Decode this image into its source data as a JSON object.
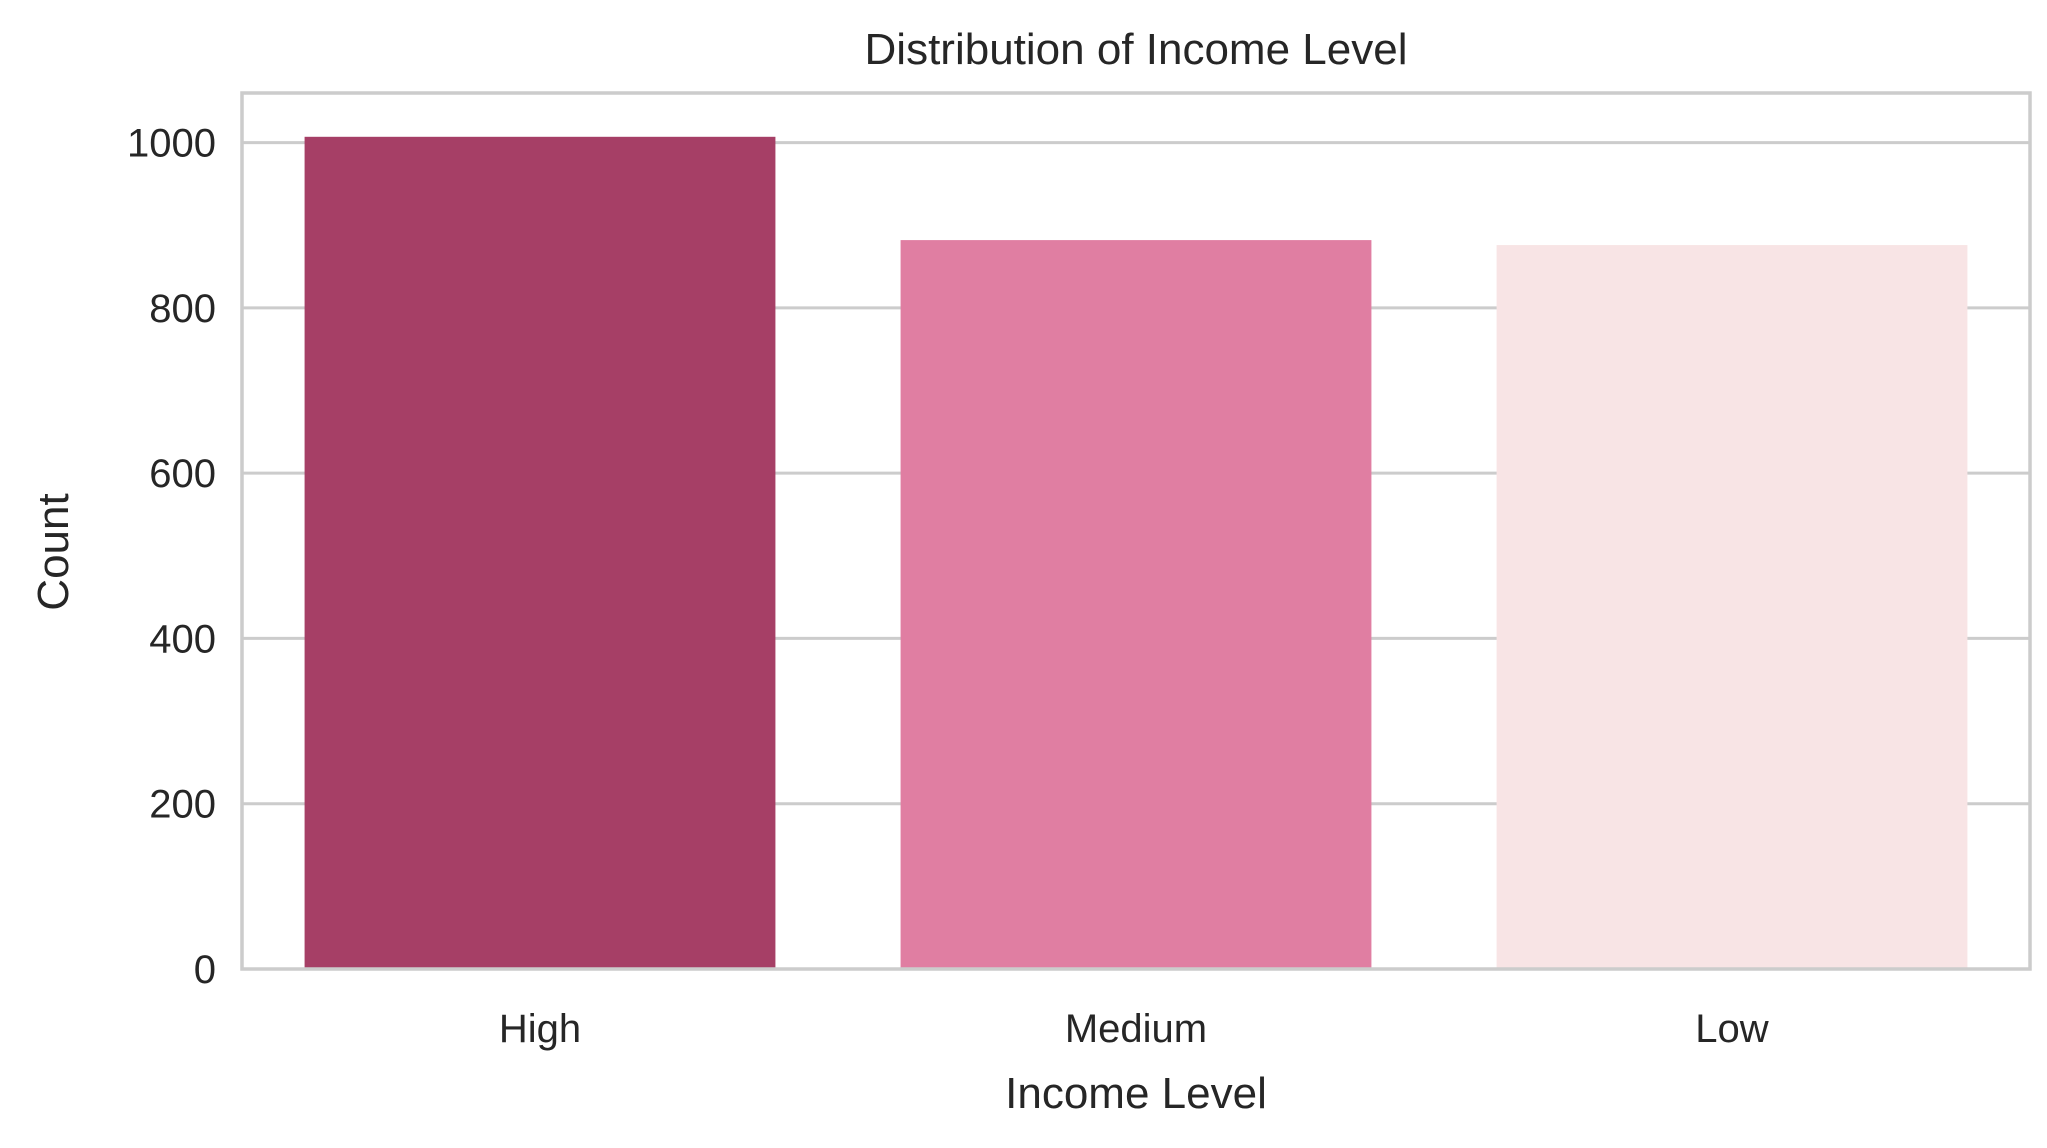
{
  "chart_data": {
    "type": "bar",
    "title": "Distribution of Income Level",
    "xlabel": "Income Level",
    "ylabel": "Count",
    "categories": [
      "High",
      "Medium",
      "Low"
    ],
    "values": [
      1007,
      882,
      876
    ],
    "colors": [
      "#a63f66",
      "#e07ea2",
      "#f8e4e5"
    ],
    "ylim": [
      0,
      1060
    ],
    "yticks": [
      0,
      200,
      400,
      600,
      800,
      1000
    ],
    "grid": "horizontal"
  }
}
